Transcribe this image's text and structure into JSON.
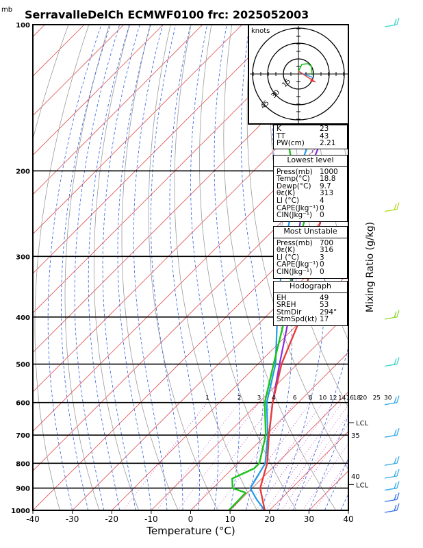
{
  "header": {
    "unit_top": "mb",
    "title": "SerravalleDelCh ECMWF0100 frc: 2025052003"
  },
  "chart_data": {
    "type": "skew-t log-p sounding",
    "xlabel": "Temperature (°C)",
    "ylabel_right": "Mixing Ratio (g/kg)",
    "x_ticks": [
      "-40",
      "-30",
      "-20",
      "-10",
      "0",
      "10",
      "20",
      "30",
      "40"
    ],
    "x_range": [
      -40,
      40
    ],
    "p_range": [
      1000,
      100
    ],
    "p_ticks": [
      "100",
      "200",
      "300",
      "400",
      "500",
      "600",
      "700",
      "800",
      "900",
      "1000"
    ],
    "mixing_ratio_labels": [
      "1",
      "2",
      "3",
      "4",
      "6",
      "8",
      "10",
      "12",
      "14",
      "16",
      "18",
      "20",
      "25",
      "30"
    ],
    "temperature_profile": {
      "color": "#e83a3a",
      "points": [
        [
          1000,
          18.8
        ],
        [
          900,
          12.0
        ],
        [
          800,
          7.5
        ],
        [
          700,
          0.8
        ],
        [
          600,
          -6.5
        ],
        [
          500,
          -14.0
        ],
        [
          400,
          -21.0
        ],
        [
          300,
          -33.5
        ],
        [
          250,
          -41.0
        ],
        [
          200,
          -40.5
        ],
        [
          150,
          -40.0
        ],
        [
          100,
          -46.0
        ]
      ]
    },
    "dewpoint_profile": {
      "color": "#19c319",
      "points": [
        [
          1000,
          9.7
        ],
        [
          920,
          9.5
        ],
        [
          900,
          5.0
        ],
        [
          860,
          2.5
        ],
        [
          820,
          5.5
        ],
        [
          800,
          5.5
        ],
        [
          700,
          0.0
        ],
        [
          600,
          -8.5
        ],
        [
          500,
          -16.0
        ],
        [
          400,
          -25.0
        ],
        [
          300,
          -38.0
        ],
        [
          250,
          -45.0
        ],
        [
          200,
          -60.0
        ],
        [
          150,
          -78.0
        ],
        [
          100,
          -100.0
        ]
      ]
    },
    "parcel_surface": {
      "color": "#1e9be6",
      "points": [
        [
          1000,
          18.8
        ],
        [
          950,
          14.0
        ],
        [
          900,
          9.5
        ],
        [
          850,
          8.3
        ],
        [
          800,
          7.0
        ],
        [
          700,
          0.5
        ],
        [
          600,
          -8.0
        ],
        [
          500,
          -15.5
        ],
        [
          400,
          -27.0
        ],
        [
          300,
          -41.0
        ],
        [
          200,
          -58.5
        ],
        [
          100,
          -83.0
        ]
      ]
    },
    "parcel_unstable": {
      "color": "#8a2be2",
      "points": [
        [
          700,
          0.8
        ],
        [
          600,
          -6.5
        ],
        [
          500,
          -14.5
        ],
        [
          400,
          -24.0
        ],
        [
          300,
          -38.0
        ],
        [
          200,
          -56.0
        ],
        [
          100,
          -78.0
        ]
      ]
    },
    "theta_e_labels": [
      {
        "text": "35",
        "p": 700
      },
      {
        "text": "40",
        "p": 850
      }
    ],
    "lcl_labels": [
      {
        "text": "LCL",
        "p": 660
      },
      {
        "text": "LCL",
        "p": 885
      }
    ],
    "wind_barbs": [
      {
        "p": 100,
        "color": "#3ad3c8"
      },
      {
        "p": 240,
        "color": "#b6dc2a"
      },
      {
        "p": 400,
        "color": "#8ad82a"
      },
      {
        "p": 500,
        "color": "#3ad3c8"
      },
      {
        "p": 600,
        "color": "#2fa8e6"
      },
      {
        "p": 700,
        "color": "#2fa8e6"
      },
      {
        "p": 800,
        "color": "#2fa8e6"
      },
      {
        "p": 850,
        "color": "#2fa8e6"
      },
      {
        "p": 900,
        "color": "#2fa8e6"
      },
      {
        "p": 950,
        "color": "#2f6fe6"
      },
      {
        "p": 1000,
        "color": "#2f6fe6"
      }
    ],
    "hodograph": {
      "unit": "knots",
      "rings": [
        "15",
        "30",
        "45"
      ]
    }
  },
  "indices": {
    "k_label": "K",
    "k_value": "23",
    "tt_label": "TT",
    "tt_value": "43",
    "pw_label": "PW(cm)",
    "pw_value": "2.21"
  },
  "lowest_level": {
    "heading": "Lowest level",
    "rows": [
      {
        "label": "Press(mb)",
        "value": "1000"
      },
      {
        "label": "Temp(°C)",
        "value": "18.8"
      },
      {
        "label": "Dewp(°C)",
        "value": "9.7"
      },
      {
        "label": "θε(K)",
        "value": "313"
      },
      {
        "label": "LI (°C)",
        "value": "4"
      },
      {
        "label": "CAPE(Jkg⁻¹)",
        "value": "0"
      },
      {
        "label": "CIN(Jkg⁻¹)",
        "value": "0"
      }
    ]
  },
  "most_unstable": {
    "heading": "Most Unstable",
    "rows": [
      {
        "label": "Press(mb)",
        "value": "700"
      },
      {
        "label": "θε(K)",
        "value": "316"
      },
      {
        "label": "LI (°C)",
        "value": "3"
      },
      {
        "label": "CAPE(Jkg⁻¹)",
        "value": "0"
      },
      {
        "label": "CIN(Jkg⁻¹)",
        "value": "0"
      }
    ]
  },
  "hodograph_table": {
    "heading": "Hodograph",
    "rows": [
      {
        "label": "EH",
        "value": "49"
      },
      {
        "label": "SREH",
        "value": "53"
      },
      {
        "label": "StmDir",
        "value": "294°"
      },
      {
        "label": "StmSpd(kt)",
        "value": "17"
      }
    ]
  }
}
